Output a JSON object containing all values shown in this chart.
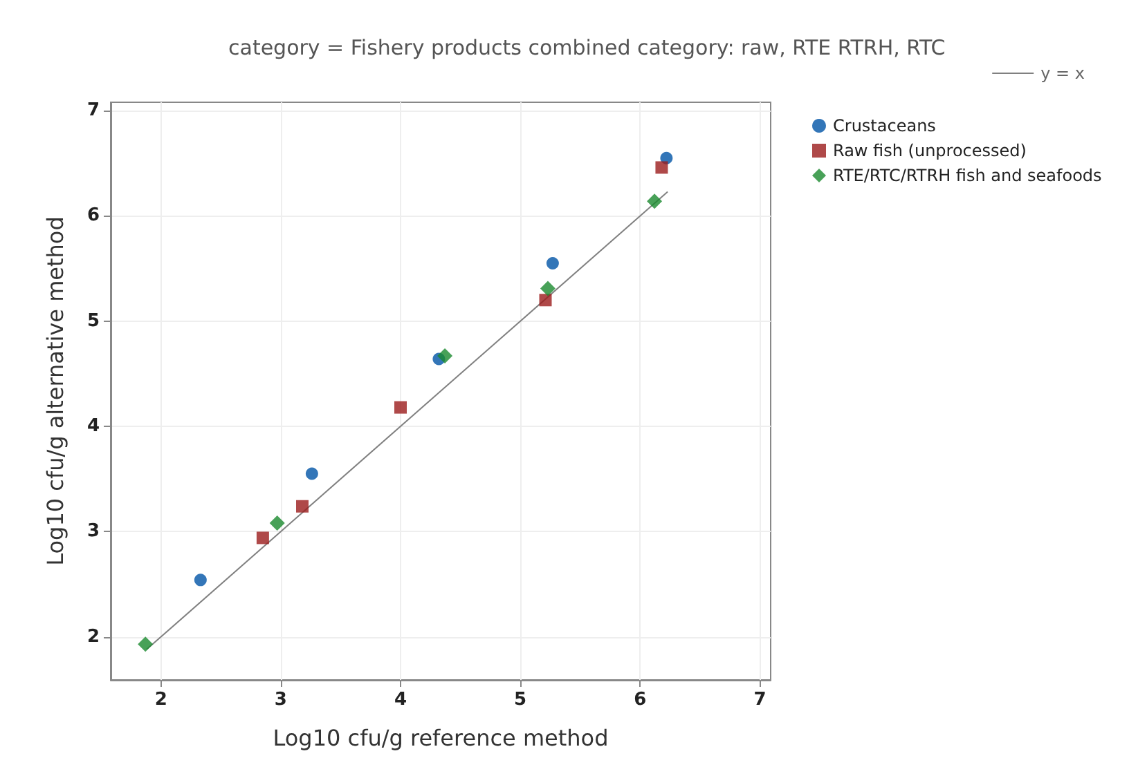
{
  "chart_data": {
    "type": "scatter",
    "title": "category = Fishery products combined category: raw, RTE RTRH, RTC",
    "xlabel": "Log10 cfu/g reference method",
    "ylabel": "Log10 cfu/g alternative method",
    "series": [
      {
        "name": "Crustaceans",
        "color": "#0054a6",
        "marker": "circle",
        "x": [
          2.33,
          3.26,
          4.32,
          5.27,
          6.22
        ],
        "values": [
          2.54,
          3.55,
          4.64,
          5.55,
          6.55
        ]
      },
      {
        "name": "Raw fish (unprocessed)",
        "color": "#9b1b1b",
        "marker": "square",
        "x": [
          2.85,
          3.18,
          4.0,
          5.21,
          6.18
        ],
        "values": [
          2.94,
          3.24,
          4.18,
          5.2,
          6.46
        ]
      },
      {
        "name": "RTE/RTC/RTRH fish and seafoods",
        "color": "#1a8a2e",
        "marker": "diamond",
        "x": [
          1.87,
          2.97,
          4.37,
          5.23,
          6.12
        ],
        "values": [
          1.93,
          3.08,
          4.67,
          5.31,
          6.14
        ]
      },
      {
        "name": "y = x",
        "type": "line",
        "color": "#808080",
        "marker": "none",
        "x": [
          6.23,
          1.88
        ],
        "values": [
          6.23,
          1.88
        ]
      }
    ],
    "xlim": [
      1.58,
      7.09
    ],
    "ylim": [
      1.59,
      7.08
    ],
    "xticks": [
      2,
      3,
      4,
      5,
      6,
      7
    ],
    "yticks": [
      2,
      3,
      4,
      5,
      6,
      7
    ],
    "grid": true,
    "legend": "top right"
  }
}
